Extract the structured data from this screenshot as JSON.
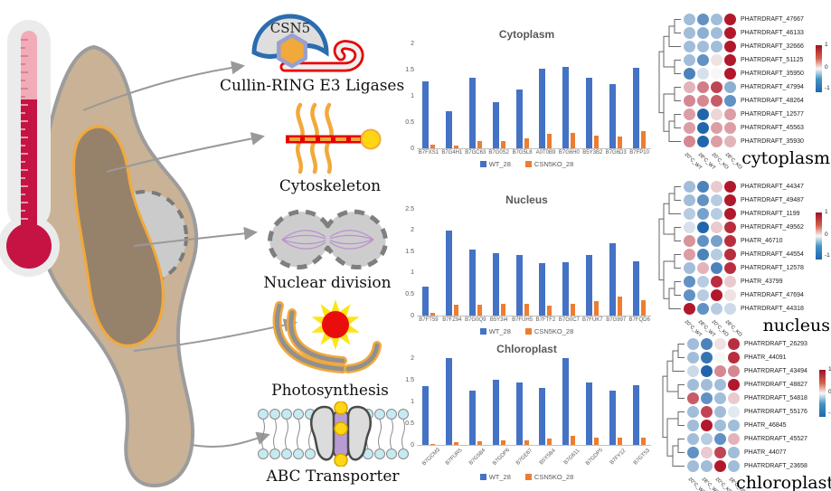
{
  "illustration": {
    "csn5_label": "CSN5",
    "pathways": [
      {
        "label": "Cullin-RING E3 Ligases"
      },
      {
        "label": "Cytoskeleton"
      },
      {
        "label": "Nuclear division"
      },
      {
        "label": "Photosynthesis"
      },
      {
        "label": "ABC Transporter"
      }
    ]
  },
  "colors": {
    "bar_blue": "#4472C4",
    "bar_orange": "#ED7D31",
    "heat_red": "#B2182B",
    "heat_blue": "#2166AC",
    "cell_body": "#C9B295",
    "chloroplast_fill": "#96826B",
    "chloroplast_outline": "#F2A93B",
    "thermometer_fill": "#C51344"
  },
  "chart_data": [
    {
      "type": "bar",
      "title": "Cytoplasm",
      "categories": [
        "B7FXS1",
        "B7G4H1",
        "B7GC63",
        "B7G0S2",
        "B7G5L8",
        "A0T0B9",
        "B7G6H0",
        "B5Y3B2",
        "B7G6D3",
        "B7FP10"
      ],
      "series": [
        {
          "name": "WT_28",
          "color": "#4472C4",
          "values": [
            1.27,
            0.7,
            1.35,
            0.88,
            1.12,
            1.52,
            1.56,
            1.34,
            1.23,
            1.53
          ]
        },
        {
          "name": "CSN5KO_28",
          "color": "#ED7D31",
          "values": [
            0.07,
            0.05,
            0.13,
            0.14,
            0.19,
            0.27,
            0.29,
            0.25,
            0.23,
            0.33
          ]
        }
      ],
      "xlabel": "",
      "ylabel": "",
      "ylim": [
        0,
        2
      ],
      "yticks": [
        0,
        0.5,
        1,
        1.5,
        2
      ],
      "grid": false,
      "legend_position": "bottom"
    },
    {
      "type": "bar",
      "title": "Nucleus",
      "categories": [
        "B7FT59",
        "B7FZ94",
        "B7G0Q9",
        "B5Y3I4",
        "B7FUH5",
        "B7FTF2",
        "B7G0C7",
        "B7FUK7",
        "B7G997",
        "B7FQD6"
      ],
      "series": [
        {
          "name": "WT_28",
          "color": "#4472C4",
          "values": [
            0.67,
            1.99,
            1.55,
            1.46,
            1.41,
            1.23,
            1.25,
            1.43,
            1.69,
            1.28
          ]
        },
        {
          "name": "CSN5KO_28",
          "color": "#ED7D31",
          "values": [
            0.07,
            0.26,
            0.25,
            0.28,
            0.28,
            0.24,
            0.28,
            0.33,
            0.45,
            0.35
          ]
        }
      ],
      "xlabel": "",
      "ylabel": "",
      "ylim": [
        0,
        2.5
      ],
      "yticks": [
        0,
        0.5,
        1,
        1.5,
        2,
        2.5
      ],
      "grid": false,
      "legend_position": "bottom"
    },
    {
      "type": "bar",
      "title": "Chloroplast",
      "categories": [
        "B7GCM3",
        "B7FUR5",
        "B7G5B4",
        "B7GDP6",
        "B7GE67",
        "B5Y5B4",
        "B7G611",
        "B7GDP5",
        "B7FY12",
        "B7GT53"
      ],
      "series": [
        {
          "name": "WT_28",
          "color": "#4472C4",
          "values": [
            1.35,
            1.99,
            1.24,
            1.49,
            1.43,
            1.32,
            1.99,
            1.43,
            1.24,
            1.37
          ]
        },
        {
          "name": "CSN5KO_28",
          "color": "#ED7D31",
          "values": [
            0.03,
            0.07,
            0.08,
            0.1,
            0.11,
            0.14,
            0.21,
            0.16,
            0.16,
            0.17
          ]
        }
      ],
      "xlabel": "",
      "ylabel": "",
      "ylim": [
        0,
        2
      ],
      "yticks": [
        0,
        0.5,
        1,
        1.5,
        2
      ],
      "grid": false,
      "legend_position": "bottom"
    },
    {
      "type": "heatmap",
      "panel_label": "cytoplasm",
      "rows": [
        "PHATRDRAFT_47667",
        "PHATRDRAFT_46133",
        "PHATRDRAFT_32666",
        "PHATRDRAFT_51125",
        "PHATRDRAFT_35950",
        "PHATRDRAFT_47994",
        "PHATRDRAFT_48264",
        "PHATRDRAFT_12577",
        "PHATRDRAFT_45563",
        "PHATRDRAFT_35930"
      ],
      "columns": [
        "20°C_WT",
        "28°C_WT",
        "20°C_KO",
        "28°C_KO"
      ],
      "values": [
        [
          -0.4,
          -0.7,
          -0.4,
          1.0
        ],
        [
          -0.4,
          -0.5,
          -0.4,
          1.0
        ],
        [
          -0.4,
          -0.4,
          -0.4,
          1.0
        ],
        [
          -0.4,
          -0.7,
          0.1,
          1.0
        ],
        [
          -0.8,
          -0.15,
          0.0,
          1.0
        ],
        [
          0.3,
          0.55,
          0.8,
          -0.5
        ],
        [
          0.5,
          0.5,
          0.7,
          -0.7
        ],
        [
          0.4,
          -1.0,
          0.15,
          0.4
        ],
        [
          0.4,
          -1.0,
          0.4,
          0.4
        ],
        [
          0.5,
          -1.0,
          0.4,
          0.3
        ]
      ],
      "scale": {
        "min": -1,
        "max": 1
      },
      "colorbar_ticks": [
        1,
        0,
        -1
      ]
    },
    {
      "type": "heatmap",
      "panel_label": "nucleus",
      "rows": [
        "PHATRDRAFT_44347",
        "PHATRDRAFT_49487",
        "PHATRDRAFT_1199",
        "PHATRDRAFT_49562",
        "PHATR_46710",
        "PHATRDRAFT_44554",
        "PHATRDRAFT_12578",
        "PHATR_43799",
        "PHATRDRAFT_47694",
        "PHATRDRAFT_44318"
      ],
      "columns": [
        "20°C_WT",
        "28°C_WT",
        "20°C_KO",
        "28°C_KO"
      ],
      "values": [
        [
          -0.4,
          -0.8,
          0.2,
          1.0
        ],
        [
          -0.4,
          -0.7,
          -0.3,
          1.0
        ],
        [
          -0.3,
          -0.6,
          -0.3,
          1.0
        ],
        [
          -0.15,
          -1.0,
          0.2,
          0.9
        ],
        [
          0.45,
          -0.7,
          -0.6,
          0.9
        ],
        [
          0.4,
          -0.8,
          -0.3,
          0.9
        ],
        [
          -0.4,
          0.3,
          -0.8,
          0.9
        ],
        [
          -0.7,
          -0.3,
          0.9,
          0.2
        ],
        [
          -0.7,
          -0.3,
          1.0,
          0.1
        ],
        [
          1.0,
          -0.7,
          -0.3,
          -0.2
        ]
      ],
      "scale": {
        "min": -1,
        "max": 1
      },
      "colorbar_ticks": [
        1,
        0,
        -1
      ]
    },
    {
      "type": "heatmap",
      "panel_label": "chloroplast",
      "rows": [
        "PHATRDRAFT_26293",
        "PHATR_44091",
        "PHATRDRAFT_43494",
        "PHATRDRAFT_48827",
        "PHATRDRAFT_54818",
        "PHATRDRAFT_55176",
        "PHATR_46845",
        "PHATRDRAFT_45527",
        "PHATR_44077",
        "PHATRDRAFT_23658"
      ],
      "columns": [
        "20°C_WT",
        "28°C_WT",
        "20°C_KO",
        "28°C_KO"
      ],
      "values": [
        [
          -0.4,
          -0.8,
          0.1,
          0.9
        ],
        [
          -0.4,
          -0.9,
          0.0,
          0.9
        ],
        [
          -0.2,
          -1.0,
          0.5,
          0.5
        ],
        [
          -0.4,
          -0.4,
          -0.4,
          1.0
        ],
        [
          0.7,
          -0.7,
          -0.4,
          0.2
        ],
        [
          -0.4,
          0.8,
          -0.4,
          -0.1
        ],
        [
          -0.4,
          1.0,
          -0.4,
          -0.4
        ],
        [
          -0.4,
          -0.3,
          -0.7,
          0.3
        ],
        [
          -0.7,
          0.2,
          0.8,
          -0.4
        ],
        [
          -0.4,
          -0.4,
          1.0,
          -0.4
        ]
      ],
      "scale": {
        "min": -1,
        "max": 1
      },
      "colorbar_ticks": [
        1,
        0,
        -1
      ]
    }
  ]
}
